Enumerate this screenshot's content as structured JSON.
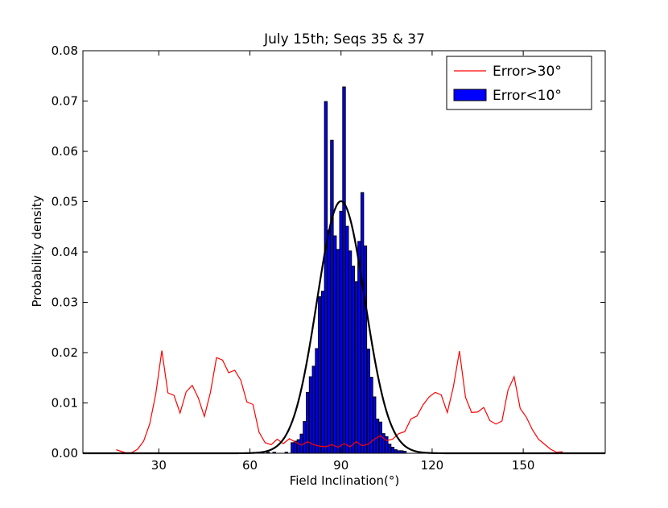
{
  "chart_data": {
    "type": "bar",
    "title": "July 15th; Seqs 35 & 37",
    "xlabel": "Field Inclination(°)",
    "ylabel": "Probability density",
    "xlim": [
      5,
      177
    ],
    "ylim": [
      0,
      0.08
    ],
    "x_ticks": [
      30,
      60,
      90,
      120,
      150
    ],
    "x_tick_labels": [
      "30",
      "60",
      "90",
      "120",
      "150"
    ],
    "y_ticks": [
      0,
      0.01,
      0.02,
      0.03,
      0.04,
      0.05,
      0.06,
      0.07,
      0.08
    ],
    "y_tick_labels": [
      "0.00",
      "0.01",
      "0.02",
      "0.03",
      "0.04",
      "0.05",
      "0.06",
      "0.07",
      "0.08"
    ],
    "grid": false,
    "legend_position": "top-right",
    "colors": {
      "bars": "#0000ff",
      "bar_edge": "#000000",
      "error_line": "#ff0000",
      "fit_curve": "#000000"
    },
    "series": [
      {
        "name": "Error>30°",
        "kind": "line",
        "x": [
          16,
          19,
          21,
          23,
          25,
          27,
          29,
          31,
          33,
          35,
          37,
          39,
          41,
          43,
          45,
          47,
          49,
          51,
          53,
          55,
          57,
          59,
          61,
          63,
          65,
          67,
          69,
          71,
          73,
          75,
          77,
          79,
          81,
          83,
          85,
          87,
          89,
          91,
          93,
          95,
          97,
          99,
          101,
          103,
          105,
          107,
          109,
          111,
          113,
          115,
          117,
          119,
          121,
          123,
          125,
          127,
          129,
          131,
          133,
          135,
          137,
          139,
          141,
          143,
          145,
          147,
          149,
          151,
          153,
          155,
          157,
          159,
          161,
          163
        ],
        "y": [
          0.0007,
          0.0001,
          0.0001,
          0.0008,
          0.0024,
          0.0058,
          0.0118,
          0.0204,
          0.012,
          0.0115,
          0.008,
          0.0122,
          0.0135,
          0.011,
          0.0073,
          0.0121,
          0.019,
          0.0185,
          0.016,
          0.0165,
          0.0145,
          0.0102,
          0.0097,
          0.0042,
          0.0021,
          0.0017,
          0.0028,
          0.0019,
          0.0029,
          0.0022,
          0.0016,
          0.0023,
          0.0017,
          0.0014,
          0.0013,
          0.0017,
          0.0012,
          0.0019,
          0.0013,
          0.0023,
          0.0015,
          0.0018,
          0.0028,
          0.0035,
          0.0025,
          0.0028,
          0.0039,
          0.0043,
          0.0068,
          0.0074,
          0.0096,
          0.0112,
          0.0121,
          0.0116,
          0.0081,
          0.0132,
          0.0203,
          0.0111,
          0.0081,
          0.0082,
          0.0091,
          0.0065,
          0.0058,
          0.0064,
          0.0126,
          0.0152,
          0.0089,
          0.0072,
          0.0047,
          0.0028,
          0.0018,
          0.0008,
          0.0002,
          0.0003
        ]
      },
      {
        "name": "Error<10°",
        "kind": "bar",
        "bar_width": 0.9,
        "x": [
          66,
          68,
          72,
          74,
          75,
          76,
          77,
          78,
          79,
          80,
          81,
          82,
          83,
          84,
          85,
          86,
          87,
          88,
          89,
          90,
          91,
          92,
          93,
          94,
          95,
          96,
          97,
          98,
          99,
          100,
          101,
          102,
          103,
          104,
          105,
          106,
          107,
          108,
          109,
          110,
          111
        ],
        "y": [
          0.0002,
          0.0002,
          0.0002,
          0.0021,
          0.0024,
          0.0027,
          0.0038,
          0.0063,
          0.0121,
          0.0152,
          0.0173,
          0.0208,
          0.0311,
          0.0322,
          0.0699,
          0.0443,
          0.0622,
          0.0432,
          0.0405,
          0.0481,
          0.0728,
          0.0451,
          0.0402,
          0.0372,
          0.0341,
          0.0421,
          0.0518,
          0.0412,
          0.0207,
          0.0151,
          0.0112,
          0.0068,
          0.0062,
          0.0039,
          0.0033,
          0.0018,
          0.0012,
          0.0007,
          0.0005,
          0.0005,
          0.0004
        ]
      },
      {
        "name": "",
        "kind": "gaussian",
        "mean": 90,
        "sigma": 7.9,
        "peak": 0.0501
      }
    ]
  }
}
